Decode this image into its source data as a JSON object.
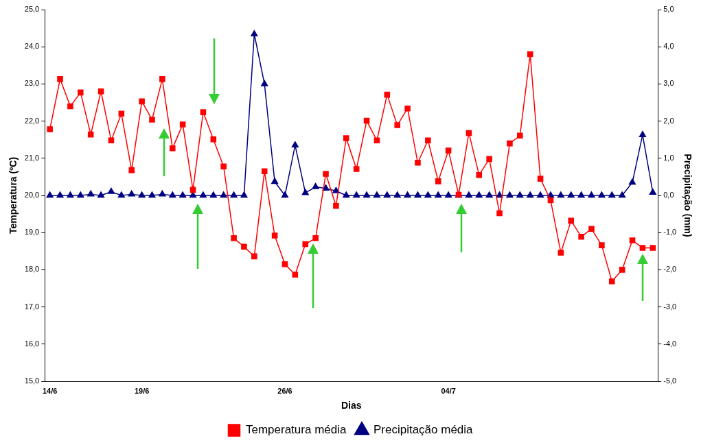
{
  "chart_data": {
    "type": "line",
    "xlabel": "Dias",
    "ylabel": "Temperatura (ºC)",
    "y2label": "Precipitação (mm)",
    "categories": [
      "14/6",
      null,
      null,
      null,
      null,
      null,
      null,
      null,
      null,
      "19/6",
      null,
      null,
      null,
      null,
      null,
      null,
      null,
      null,
      null,
      null,
      null,
      null,
      null,
      "26/6",
      null,
      null,
      null,
      null,
      null,
      null,
      null,
      null,
      null,
      null,
      null,
      null,
      null,
      null,
      null,
      "04/7",
      null,
      null,
      null,
      null,
      null,
      null,
      null,
      null,
      null,
      null,
      null,
      null,
      null,
      null,
      null,
      null,
      null,
      null,
      null,
      null
    ],
    "series": [
      {
        "name": "Temperatura média",
        "color": "#ff0000",
        "marker": "square",
        "values": [
          21.78,
          23.13,
          22.4,
          22.77,
          21.64,
          22.8,
          21.48,
          22.2,
          20.68,
          22.53,
          22.04,
          23.13,
          21.27,
          21.91,
          20.15,
          22.24,
          21.51,
          20.78,
          18.85,
          18.62,
          18.36,
          20.65,
          18.92,
          18.15,
          17.87,
          18.69,
          18.85,
          20.58,
          19.72,
          21.54,
          20.71,
          22.01,
          21.48,
          22.71,
          21.89,
          22.34,
          20.88,
          21.48,
          20.38,
          21.21,
          20.02,
          21.68,
          20.55,
          20.98,
          19.52,
          21.4,
          21.61,
          23.8,
          20.45,
          19.87,
          18.46,
          19.32,
          18.89,
          19.1,
          18.66,
          17.69,
          18.0,
          18.79,
          18.59,
          18.59
        ]
      },
      {
        "name": "Precipitação média",
        "color": "#000080",
        "marker": "triangle",
        "axis": "y2",
        "values": [
          0,
          0,
          0,
          0,
          0.03,
          0,
          0.1,
          0,
          0.03,
          0,
          0,
          0.03,
          0,
          0,
          0,
          0,
          0,
          0,
          0,
          0,
          4.34,
          3.0,
          0.37,
          0,
          1.35,
          0.07,
          0.23,
          0.19,
          0.12,
          0,
          0,
          0,
          0,
          0,
          0,
          0,
          0,
          0,
          0,
          0,
          0,
          0,
          0,
          0,
          0,
          0,
          0,
          0,
          0,
          0,
          0,
          0,
          0,
          0,
          0,
          0,
          0,
          0.35,
          1.63,
          0.08
        ]
      }
    ],
    "ylim": [
      15,
      25
    ],
    "yticks": [
      {
        "value": 15,
        "label": "15,0"
      },
      {
        "value": 16,
        "label": "16,0"
      },
      {
        "value": 17,
        "label": "17,0"
      },
      {
        "value": 18,
        "label": "18,0"
      },
      {
        "value": 19,
        "label": "19,0"
      },
      {
        "value": 20,
        "label": "20,0"
      },
      {
        "value": 21,
        "label": "21,0"
      },
      {
        "value": 22,
        "label": "22,0"
      },
      {
        "value": 23,
        "label": "23,0"
      },
      {
        "value": 24,
        "label": "24,0"
      },
      {
        "value": 25,
        "label": "25,0"
      }
    ],
    "y2lim": [
      -5,
      5
    ],
    "y2ticks": [
      {
        "value": -5,
        "label": "-5,0"
      },
      {
        "value": -4,
        "label": "-4,0"
      },
      {
        "value": -3,
        "label": "-3,0"
      },
      {
        "value": -2,
        "label": "-2,0"
      },
      {
        "value": -1,
        "label": "-1,0"
      },
      {
        "value": 0,
        "label": "0,0"
      },
      {
        "value": 1,
        "label": "1,0"
      },
      {
        "value": 2,
        "label": "2,0"
      },
      {
        "value": 3,
        "label": "3,0"
      },
      {
        "value": 4,
        "label": "4,0"
      },
      {
        "value": 5,
        "label": "5,0"
      }
    ],
    "grid": false,
    "legend": "bottom"
  }
}
